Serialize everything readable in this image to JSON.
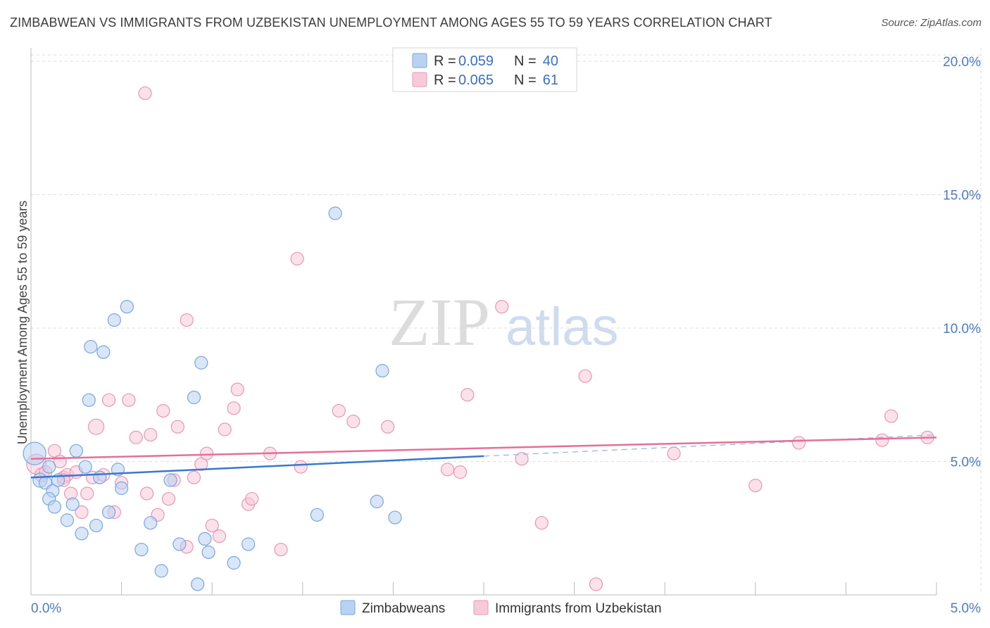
{
  "header": {
    "title": "ZIMBABWEAN VS IMMIGRANTS FROM UZBEKISTAN UNEMPLOYMENT AMONG AGES 55 TO 59 YEARS CORRELATION CHART",
    "source": "Source: ZipAtlas.com"
  },
  "watermark": {
    "zip": "ZIP",
    "atlas": "atlas"
  },
  "colors": {
    "blue_fill": "#b8d2f3",
    "blue_stroke": "#7aa6e0",
    "blue_line": "#3a78d0",
    "pink_fill": "#f8c9d8",
    "pink_stroke": "#eb97b3",
    "pink_line": "#e4709a",
    "grid": "#dddddd",
    "axis_text": "#4a7cc7"
  },
  "legend": {
    "rows": [
      {
        "r_label": "R =",
        "r_value": "0.059",
        "n_label": "N =",
        "n_value": "40"
      },
      {
        "r_label": "R =",
        "r_value": "0.065",
        "n_label": "N =",
        "n_value": "61"
      }
    ]
  },
  "chart_data": {
    "type": "scatter",
    "title": "ZIMBABWEAN VS IMMIGRANTS FROM UZBEKISTAN UNEMPLOYMENT AMONG AGES 55 TO 59 YEARS CORRELATION CHART",
    "xlabel": "",
    "ylabel": "Unemployment Among Ages 55 to 59 years",
    "xlim": [
      0,
      5.0
    ],
    "ylim": [
      0,
      20.5
    ],
    "x_tick_labels": [
      "0.0%",
      "5.0%"
    ],
    "y_ticks": [
      5,
      10,
      15,
      20
    ],
    "y_tick_labels": [
      "5.0%",
      "10.0%",
      "15.0%",
      "20.0%"
    ],
    "grid": true,
    "series": [
      {
        "name": "Zimbabweans",
        "r": 0.059,
        "n": 40,
        "trend": {
          "x0": 0.0,
          "y0": 4.4,
          "x1": 2.5,
          "y1": 5.2,
          "dash_x1": 5.0,
          "dash_y1": 6.0
        },
        "points": [
          [
            0.02,
            5.3,
            16
          ],
          [
            0.05,
            4.3,
            10
          ],
          [
            0.08,
            4.2,
            9
          ],
          [
            0.1,
            4.8,
            9
          ],
          [
            0.12,
            3.9,
            9
          ],
          [
            0.1,
            3.6,
            9
          ],
          [
            0.13,
            3.3,
            9
          ],
          [
            0.15,
            4.3,
            9
          ],
          [
            0.2,
            2.8,
            9
          ],
          [
            0.23,
            3.4,
            9
          ],
          [
            0.25,
            5.4,
            9
          ],
          [
            0.28,
            2.3,
            9
          ],
          [
            0.3,
            4.8,
            9
          ],
          [
            0.32,
            7.3,
            9
          ],
          [
            0.33,
            9.3,
            9
          ],
          [
            0.36,
            2.6,
            9
          ],
          [
            0.38,
            4.4,
            9
          ],
          [
            0.4,
            9.1,
            9
          ],
          [
            0.43,
            3.1,
            9
          ],
          [
            0.46,
            10.3,
            9
          ],
          [
            0.48,
            4.7,
            9
          ],
          [
            0.5,
            4.0,
            9
          ],
          [
            0.53,
            10.8,
            9
          ],
          [
            0.61,
            1.7,
            9
          ],
          [
            0.66,
            2.7,
            9
          ],
          [
            0.72,
            0.9,
            9
          ],
          [
            0.77,
            4.3,
            9
          ],
          [
            0.82,
            1.9,
            9
          ],
          [
            0.9,
            7.4,
            9
          ],
          [
            0.92,
            0.4,
            9
          ],
          [
            0.94,
            8.7,
            9
          ],
          [
            0.96,
            2.1,
            9
          ],
          [
            0.98,
            1.6,
            9
          ],
          [
            1.12,
            1.2,
            9
          ],
          [
            1.2,
            1.9,
            9
          ],
          [
            1.58,
            3.0,
            9
          ],
          [
            1.68,
            14.3,
            9
          ],
          [
            1.91,
            3.5,
            9
          ],
          [
            1.94,
            8.4,
            9
          ],
          [
            2.01,
            2.9,
            9
          ]
        ]
      },
      {
        "name": "Immigrants from Uzbekistan",
        "r": 0.065,
        "n": 61,
        "trend": {
          "x0": 0.0,
          "y0": 5.1,
          "x1": 5.0,
          "y1": 5.9
        },
        "points": [
          [
            0.03,
            4.9,
            14
          ],
          [
            0.06,
            4.5,
            10
          ],
          [
            0.08,
            4.6,
            9
          ],
          [
            0.13,
            5.4,
            9
          ],
          [
            0.16,
            5.0,
            9
          ],
          [
            0.18,
            4.4,
            9
          ],
          [
            0.2,
            4.5,
            9
          ],
          [
            0.22,
            3.8,
            9
          ],
          [
            0.25,
            4.6,
            9
          ],
          [
            0.28,
            3.1,
            9
          ],
          [
            0.31,
            3.8,
            9
          ],
          [
            0.34,
            4.4,
            9
          ],
          [
            0.36,
            6.3,
            11
          ],
          [
            0.4,
            4.5,
            9
          ],
          [
            0.43,
            7.3,
            9
          ],
          [
            0.46,
            3.1,
            9
          ],
          [
            0.5,
            4.2,
            9
          ],
          [
            0.54,
            7.3,
            9
          ],
          [
            0.58,
            5.9,
            9
          ],
          [
            0.63,
            18.8,
            9
          ],
          [
            0.64,
            3.8,
            9
          ],
          [
            0.66,
            6.0,
            9
          ],
          [
            0.7,
            3.0,
            9
          ],
          [
            0.73,
            6.9,
            9
          ],
          [
            0.76,
            3.6,
            9
          ],
          [
            0.79,
            4.3,
            9
          ],
          [
            0.81,
            6.3,
            9
          ],
          [
            0.86,
            1.8,
            9
          ],
          [
            0.86,
            10.3,
            9
          ],
          [
            0.9,
            4.4,
            9
          ],
          [
            0.94,
            4.9,
            9
          ],
          [
            0.97,
            5.3,
            9
          ],
          [
            1.0,
            2.6,
            9
          ],
          [
            1.04,
            2.2,
            9
          ],
          [
            1.07,
            6.2,
            9
          ],
          [
            1.12,
            7.0,
            9
          ],
          [
            1.14,
            7.7,
            9
          ],
          [
            1.2,
            3.4,
            9
          ],
          [
            1.22,
            3.6,
            9
          ],
          [
            1.32,
            5.3,
            9
          ],
          [
            1.38,
            1.7,
            9
          ],
          [
            1.47,
            12.6,
            9
          ],
          [
            1.49,
            4.8,
            9
          ],
          [
            1.7,
            6.9,
            9
          ],
          [
            1.78,
            6.5,
            9
          ],
          [
            1.97,
            6.3,
            9
          ],
          [
            2.3,
            4.7,
            9
          ],
          [
            2.37,
            4.6,
            9
          ],
          [
            2.41,
            7.5,
            9
          ],
          [
            2.6,
            10.8,
            9
          ],
          [
            2.71,
            5.1,
            9
          ],
          [
            2.82,
            2.7,
            9
          ],
          [
            3.06,
            8.2,
            9
          ],
          [
            3.12,
            0.4,
            9
          ],
          [
            3.55,
            5.3,
            9
          ],
          [
            4.0,
            4.1,
            9
          ],
          [
            4.24,
            5.7,
            9
          ],
          [
            4.7,
            5.8,
            9
          ],
          [
            4.75,
            6.7,
            9
          ],
          [
            4.95,
            5.9,
            9
          ],
          [
            0.18,
            4.3,
            9
          ]
        ]
      }
    ],
    "legend_position": "top-center"
  },
  "bottom_legend": {
    "items": [
      {
        "label": "Zimbabweans"
      },
      {
        "label": "Immigrants from Uzbekistan"
      }
    ]
  }
}
